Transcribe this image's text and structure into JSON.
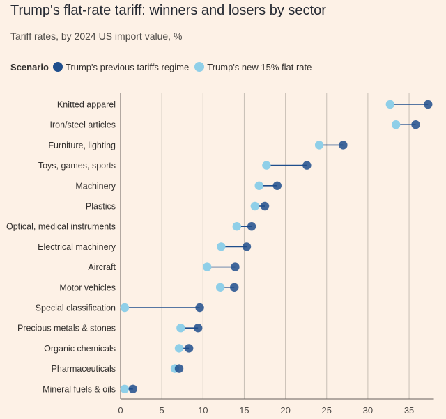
{
  "chart_data": {
    "type": "dumbbell",
    "title": "Trump's flat-rate tariff: winners and losers by sector",
    "subtitle": "Tariff rates, by 2024 US import value, %",
    "legend_title": "Scenario",
    "legend_placement": "top-left",
    "series": [
      {
        "name": "Trump's previous tariffs regime",
        "color": "#1f4e8c",
        "values": [
          37.3,
          35.8,
          27.0,
          22.6,
          19.0,
          17.5,
          15.9,
          15.3,
          13.9,
          13.8,
          9.6,
          9.4,
          8.3,
          7.1,
          1.5
        ]
      },
      {
        "name": "Trump's new 15% flat rate",
        "color": "#8fcfe8",
        "values": [
          32.7,
          33.4,
          24.1,
          17.7,
          16.8,
          16.3,
          14.1,
          12.2,
          10.5,
          12.1,
          0.5,
          7.3,
          7.1,
          6.6,
          0.5
        ]
      }
    ],
    "categories": [
      "Knitted apparel",
      "Iron/steel articles",
      "Furniture, lighting",
      "Toys, games, sports",
      "Machinery",
      "Plastics",
      "Optical, medical instruments",
      "Electrical machinery",
      "Aircraft",
      "Motor vehicles",
      "Special classification",
      "Precious metals & stones",
      "Organic chemicals",
      "Pharmaceuticals",
      "Mineral fuels & oils"
    ],
    "x_ticks": [
      0,
      5,
      10,
      15,
      20,
      25,
      30,
      35
    ],
    "xlim": [
      0,
      38
    ],
    "grid": "vertical",
    "line_color": "#1f4e8c"
  }
}
